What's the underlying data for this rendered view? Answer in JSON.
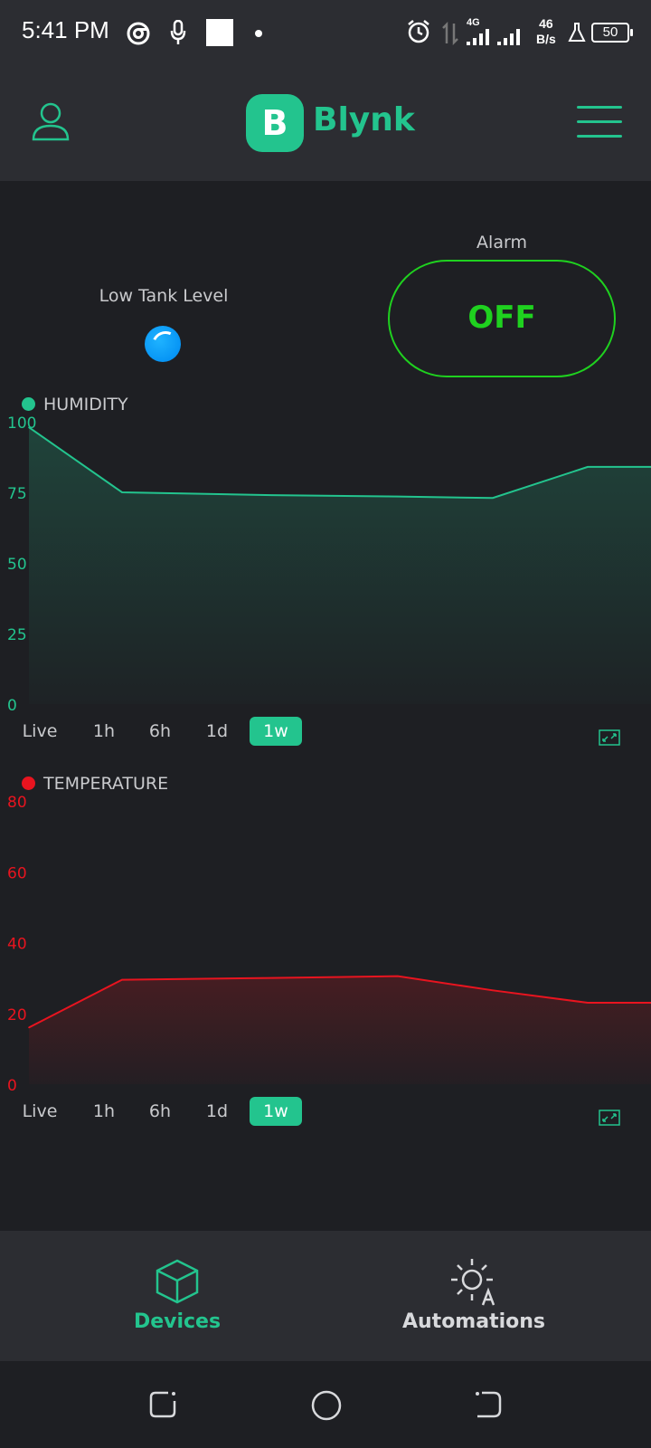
{
  "status_bar": {
    "time": "5:41 PM",
    "network_type": "4G",
    "net_speed_value": "46",
    "net_speed_unit": "B/s",
    "battery": "50"
  },
  "app_bar": {
    "logo_letter": "B",
    "logo_text": "Blynk"
  },
  "widgets": {
    "led_label": "Low Tank Level",
    "alarm_label": "Alarm",
    "alarm_state": "OFF"
  },
  "charts": {
    "humidity_title": "HUMIDITY",
    "temperature_title": "TEMPERATURE",
    "humidity_ticks": [
      "100",
      "75",
      "50",
      "25",
      "0"
    ],
    "temperature_ticks": [
      "80",
      "60",
      "40",
      "20",
      "0"
    ],
    "ranges": [
      "Live",
      "1h",
      "6h",
      "1d",
      "1w"
    ],
    "active_range": "1w"
  },
  "colors": {
    "accent": "#23c48e",
    "humidity": "#23c48e",
    "temperature": "#e8141f",
    "alarm": "#1fd11f",
    "led": "#0795f5"
  },
  "chart_data": [
    {
      "type": "area",
      "title": "HUMIDITY",
      "ylim": [
        0,
        100
      ],
      "yticks": [
        0,
        25,
        50,
        75,
        100
      ],
      "series": [
        {
          "name": "HUMIDITY",
          "values": [
            98,
            75,
            74,
            73.5,
            73,
            84,
            84
          ]
        }
      ]
    },
    {
      "type": "area",
      "title": "TEMPERATURE",
      "ylim": [
        0,
        80
      ],
      "yticks": [
        0,
        20,
        40,
        60,
        80
      ],
      "series": [
        {
          "name": "TEMPERATURE",
          "values": [
            16,
            29.5,
            30,
            30.5,
            26.5,
            23,
            23
          ]
        }
      ]
    }
  ],
  "bottom_nav": {
    "devices": "Devices",
    "automations": "Automations"
  }
}
